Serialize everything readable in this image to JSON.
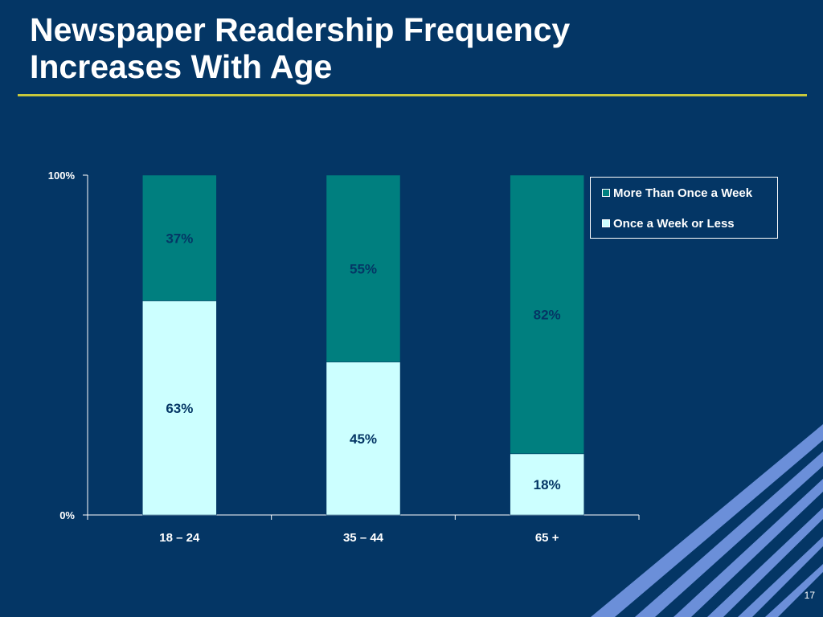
{
  "slide": {
    "title_line1": "Newspaper Readership Frequency",
    "title_line2": "Increases With Age",
    "page_number": "17"
  },
  "colors": {
    "background": "#043665",
    "rule": "#c8c83c",
    "more_than_once": "#007f7f",
    "once_or_less": "#ccffff",
    "accent_stripes": "#6b8fd9"
  },
  "chart_data": {
    "type": "bar",
    "stacked": true,
    "categories": [
      "18 – 24",
      "35 – 44",
      "65 +"
    ],
    "series": [
      {
        "name": "Once a Week or Less",
        "values": [
          63,
          45,
          18
        ],
        "labels": [
          "63%",
          "45%",
          "18%"
        ],
        "color": "#ccffff"
      },
      {
        "name": "More Than Once a Week",
        "values": [
          37,
          55,
          82
        ],
        "labels": [
          "37%",
          "55%",
          "82%"
        ],
        "color": "#007f7f"
      }
    ],
    "ylim": [
      0,
      100
    ],
    "y_ticks": [
      "0%",
      "100%"
    ],
    "grid": false,
    "legend_position": "right",
    "legend": [
      "More Than Once a Week",
      "Once a Week or Less"
    ]
  }
}
